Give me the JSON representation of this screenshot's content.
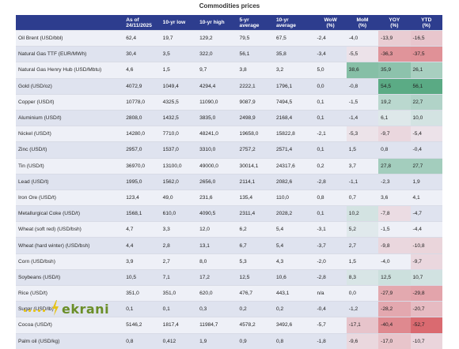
{
  "title": "Commodities prices",
  "columns": [
    {
      "key": "name",
      "label": "",
      "sub": ""
    },
    {
      "key": "asof",
      "label": "As of",
      "sub": "24/11/2025"
    },
    {
      "key": "low10",
      "label": "10-yr low",
      "sub": ""
    },
    {
      "key": "high10",
      "label": "10-yr high",
      "sub": ""
    },
    {
      "key": "avg5",
      "label": "5-yr",
      "sub": "average"
    },
    {
      "key": "avg10",
      "label": "10-yr",
      "sub": "average"
    },
    {
      "key": "wow",
      "label": "WoW",
      "sub": "(%)"
    },
    {
      "key": "mom",
      "label": "MoM",
      "sub": "(%)"
    },
    {
      "key": "yoy",
      "label": "YOY",
      "sub": "(%)"
    },
    {
      "key": "ytd",
      "label": "YTD",
      "sub": "(%)"
    }
  ],
  "rows": [
    [
      "Oil Brent (USD/bbl)",
      "62.4",
      "19.7",
      "129.2",
      "79.5",
      "67.5",
      "-2.4",
      "-4.0",
      "-13.9",
      "-16.5"
    ],
    [
      "Natural Gas TTF (EUR/MWh)",
      "30.4",
      "3.5",
      "322.0",
      "56.1",
      "35.8",
      "-3.4",
      "-5.5",
      "-36.3",
      "-37.5"
    ],
    [
      "Natural Gas Henry Hub (USD/Mbtu)",
      "4.6",
      "1.5",
      "9.7",
      "3.8",
      "3.2",
      "5.0",
      "38.6",
      "35.9",
      "26.1"
    ],
    [
      "Gold (USD/oz)",
      "4072.9",
      "1049.4",
      "4294.4",
      "2222.1",
      "1796.1",
      "0.0",
      "-0.8",
      "54.5",
      "56.1"
    ],
    [
      "Copper (USD/t)",
      "10778.0",
      "4325.5",
      "11090.0",
      "9087.9",
      "7494.5",
      "0.1",
      "-1.5",
      "19.2",
      "22.7"
    ],
    [
      "Aluminium (USD/t)",
      "2808.0",
      "1432.5",
      "3835.0",
      "2498.9",
      "2168.4",
      "0.1",
      "-1.4",
      "6.1",
      "10.0"
    ],
    [
      "Nickel (USD/t)",
      "14280.0",
      "7710.0",
      "48241.0",
      "19658.0",
      "15822.8",
      "-2.1",
      "-5.3",
      "-9.7",
      "-5.4"
    ],
    [
      "Zinc (USD/t)",
      "2957.0",
      "1537.0",
      "3310.0",
      "2757.2",
      "2571.4",
      "0.1",
      "1.5",
      "0.8",
      "-0.4"
    ],
    [
      "Tin (USD/t)",
      "36970.0",
      "13100.0",
      "49000.0",
      "30014.1",
      "24317.6",
      "0.2",
      "3.7",
      "27.8",
      "27.7"
    ],
    [
      "Lead (USD/t)",
      "1995.0",
      "1562.0",
      "2656.0",
      "2114.1",
      "2082.6",
      "-2.8",
      "-1.1",
      "-2.3",
      "1.9"
    ],
    [
      "Iron Ore (USD/t)",
      "123.4",
      "49.0",
      "231.6",
      "135.4",
      "110.0",
      "0.8",
      "0.7",
      "3.6",
      "4.1"
    ],
    [
      "Metallurgical Coke (USD/t)",
      "1568.1",
      "610.0",
      "4090.5",
      "2311.4",
      "2028.2",
      "0.1",
      "10.2",
      "-7.8",
      "-4.7"
    ],
    [
      "Wheat (soft red) (USD/bsh)",
      "4.7",
      "3.3",
      "12.0",
      "6.2",
      "5.4",
      "-3.1",
      "5.2",
      "-1.5",
      "-4.4"
    ],
    [
      "Wheat (hard winter) (USD/bsh)",
      "4.4",
      "2.8",
      "13.1",
      "6.7",
      "5.4",
      "-3.7",
      "2.7",
      "-9.8",
      "-10.8"
    ],
    [
      "Corn (USD/bsh)",
      "3.9",
      "2.7",
      "8.0",
      "5.3",
      "4.3",
      "-2.0",
      "1.5",
      "-4.0",
      "-9.7"
    ],
    [
      "Soybeans (USD/t)",
      "10.5",
      "7.1",
      "17.2",
      "12.5",
      "10.6",
      "-2.8",
      "8.3",
      "12.5",
      "10.7"
    ],
    [
      "Rice (USD/t)",
      "351.0",
      "351.0",
      "620.0",
      "476.7",
      "443.1",
      "n/a",
      "0.0",
      "-27.9",
      "-29.8"
    ],
    [
      "Sugar (USD/lb)",
      "0.1",
      "0.1",
      "0.3",
      "0.2",
      "0.2",
      "-0.4",
      "-1.2",
      "-28.2",
      "-20.7"
    ],
    [
      "Cocoa (USD/t)",
      "5146.2",
      "1817.4",
      "11984.7",
      "4578.2",
      "3492.6",
      "-5.7",
      "-17.1",
      "-40.4",
      "-52.7"
    ],
    [
      "Palm oil (USD/kg)",
      "0.8",
      "0.412",
      "1.9",
      "0.9",
      "0.8",
      "-1.8",
      "-9.6",
      "-17.0",
      "-10.7"
    ]
  ],
  "colors": {
    "header_bg": "#2d3d8e",
    "positive": "#5aaa84",
    "negative": "#d9646a"
  },
  "logo": {
    "text": "ekrani",
    "icon": "lightning-bolt-icon"
  }
}
